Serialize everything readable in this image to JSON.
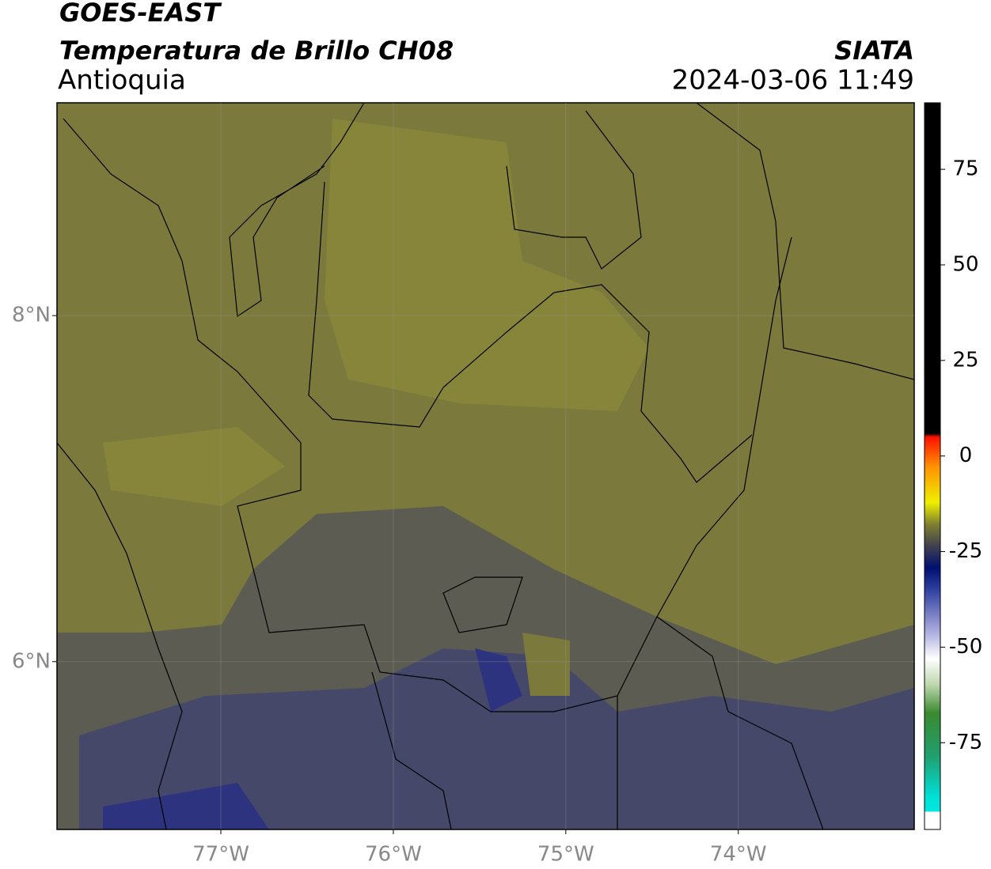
{
  "map": {
    "title": "GOES-EAST",
    "subtitle": "Temperatura de Brillo CH08",
    "region": "Antioquia",
    "source": "SIATA",
    "datetime": "2024-03-06 11:49",
    "xlim": [
      -77.95,
      -72.98
    ],
    "ylim": [
      5.03,
      9.23
    ],
    "xticks": [
      {
        "value": -77,
        "label": "77°W"
      },
      {
        "value": -76,
        "label": "76°W"
      },
      {
        "value": -75,
        "label": "75°W"
      },
      {
        "value": -74,
        "label": "74°W"
      }
    ],
    "yticks": [
      {
        "value": 6,
        "label": "6°N"
      },
      {
        "value": 8,
        "label": "8°N"
      }
    ],
    "colorbar": {
      "lim": [
        -97.7,
        92.4
      ],
      "ticks": [
        75,
        50,
        25,
        0,
        -25,
        -50,
        -75
      ]
    }
  }
}
